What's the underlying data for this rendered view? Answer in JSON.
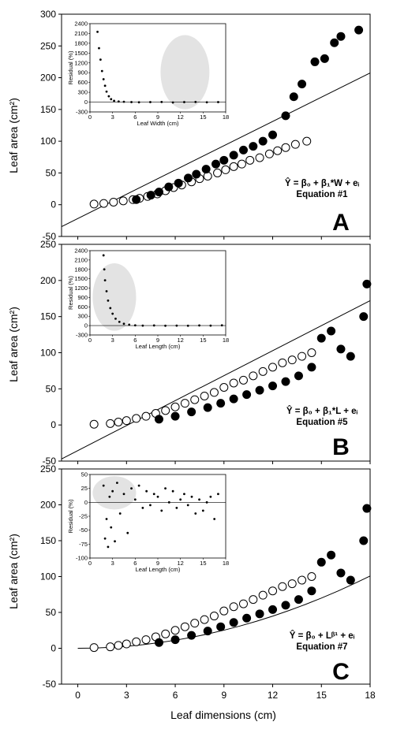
{
  "figure": {
    "y_axis_label": "Leaf area (cm²)",
    "x_axis_label": "Leaf dimensions (cm)",
    "x_ticks": [
      "0",
      "3",
      "6",
      "9",
      "12",
      "15",
      "18"
    ],
    "colors": {
      "line": "#000000",
      "open_marker_fill": "#ffffff",
      "filled_marker": "#000000",
      "highlight": "#e3e3e3"
    }
  },
  "chart_data": [
    {
      "panel": "A",
      "type": "scatter",
      "ylabel": "Leaf area (cm²)",
      "xlim": [
        -1,
        18
      ],
      "ylim": [
        -50,
        300
      ],
      "y_ticks": [
        "-50",
        "0",
        "50",
        "100",
        "150",
        "200",
        "250",
        "300"
      ],
      "equation": {
        "main": "Ŷ = β₀ + β₁*W + eᵢ",
        "label": "Equation #1"
      },
      "fit_line": {
        "x": [
          -1,
          18
        ],
        "y": [
          -34.5,
          207.5
        ]
      },
      "series": [
        {
          "marker": "open",
          "x": [
            1.0,
            1.6,
            2.2,
            2.8,
            3.4,
            3.8,
            4.3,
            4.9,
            5.4,
            5.9,
            6.4,
            7.0,
            7.5,
            8.0,
            8.6,
            9.1,
            9.6,
            10.1,
            10.6,
            11.2,
            11.8,
            12.3,
            12.8,
            13.4,
            14.1
          ],
          "y": [
            1,
            2,
            4,
            6,
            8,
            10,
            13,
            17,
            22,
            27,
            31,
            36,
            41,
            45,
            50,
            55,
            60,
            64,
            70,
            74,
            80,
            85,
            90,
            95,
            100
          ]
        },
        {
          "marker": "filled",
          "x": [
            3.6,
            4.5,
            5.0,
            5.6,
            6.2,
            6.8,
            7.3,
            7.9,
            8.5,
            9.0,
            9.6,
            10.2,
            10.8,
            11.4,
            12.0,
            12.8,
            13.3,
            13.8,
            14.6,
            15.2,
            15.8,
            16.2,
            17.3
          ],
          "y": [
            8,
            15,
            20,
            28,
            34,
            42,
            48,
            56,
            64,
            70,
            78,
            86,
            92,
            100,
            110,
            140,
            170,
            190,
            225,
            230,
            255,
            265,
            275
          ]
        }
      ],
      "inset": {
        "xlabel": "Leaf Width (cm)",
        "ylabel": "Residual (%)",
        "xlim": [
          0,
          18
        ],
        "ylim": [
          -300,
          2400
        ],
        "x_ticks": [
          "0",
          "3",
          "6",
          "9",
          "12",
          "15",
          "18"
        ],
        "y_ticks": [
          "-300",
          "0",
          "300",
          "600",
          "900",
          "1200",
          "1500",
          "1800",
          "2100",
          "2400"
        ],
        "x": [
          1.0,
          1.2,
          1.4,
          1.6,
          1.8,
          2.0,
          2.2,
          2.5,
          2.8,
          3.2,
          3.8,
          4.5,
          5.5,
          6.5,
          8.0,
          9.5,
          11.0,
          12.5,
          14.0,
          15.5,
          17.0
        ],
        "y": [
          2150,
          1650,
          1300,
          950,
          700,
          500,
          320,
          180,
          90,
          40,
          20,
          10,
          0,
          -5,
          0,
          5,
          -10,
          0,
          5,
          -5,
          0
        ]
      }
    },
    {
      "panel": "B",
      "type": "scatter",
      "ylabel": "Leaf area (cm²)",
      "xlim": [
        -1,
        18
      ],
      "ylim": [
        -50,
        250
      ],
      "y_ticks": [
        "-50",
        "0",
        "50",
        "100",
        "150",
        "200",
        "250"
      ],
      "equation": {
        "main": "Ŷ = β₀ + β₁*L + eᵢ",
        "label": "Equation #5"
      },
      "fit_line": {
        "x": [
          -1,
          18
        ],
        "y": [
          -47,
          172
        ]
      },
      "series": [
        {
          "marker": "open",
          "x": [
            1.0,
            2.0,
            2.5,
            3.0,
            3.6,
            4.2,
            4.8,
            5.4,
            6.0,
            6.6,
            7.2,
            7.8,
            8.4,
            9.0,
            9.6,
            10.2,
            10.8,
            11.4,
            12.0,
            12.6,
            13.2,
            13.8,
            14.4
          ],
          "y": [
            1,
            2,
            4,
            6,
            9,
            12,
            16,
            20,
            25,
            30,
            35,
            40,
            45,
            52,
            58,
            62,
            68,
            74,
            80,
            86,
            90,
            95,
            100
          ]
        },
        {
          "marker": "filled",
          "x": [
            5.0,
            6.0,
            7.0,
            8.0,
            8.8,
            9.6,
            10.4,
            11.2,
            12.0,
            12.8,
            13.6,
            14.4,
            15.0,
            15.6,
            16.2,
            16.8,
            17.6,
            17.8
          ],
          "y": [
            8,
            12,
            18,
            24,
            30,
            36,
            42,
            48,
            54,
            60,
            68,
            80,
            120,
            130,
            105,
            95,
            150,
            195
          ]
        }
      ],
      "inset": {
        "xlabel": "Leaf Length (cm)",
        "ylabel": "Residual (%)",
        "xlim": [
          0,
          18
        ],
        "ylim": [
          -300,
          2400
        ],
        "x_ticks": [
          "0",
          "3",
          "6",
          "9",
          "12",
          "15",
          "18"
        ],
        "y_ticks": [
          "-300",
          "0",
          "300",
          "600",
          "900",
          "1200",
          "1500",
          "1800",
          "2100",
          "2400"
        ],
        "x": [
          1.8,
          1.9,
          2.0,
          2.2,
          2.4,
          2.7,
          3.0,
          3.4,
          3.9,
          4.5,
          5.2,
          6.0,
          7.0,
          8.5,
          10.0,
          11.5,
          13.0,
          14.5,
          16.0,
          17.5
        ],
        "y": [
          2250,
          1800,
          1450,
          1100,
          800,
          560,
          380,
          220,
          120,
          60,
          30,
          10,
          0,
          5,
          -5,
          0,
          -5,
          5,
          0,
          10
        ]
      }
    },
    {
      "panel": "C",
      "type": "scatter",
      "ylabel": "Leaf area (cm²)",
      "xlim": [
        -1,
        18
      ],
      "ylim": [
        -50,
        250
      ],
      "y_ticks": [
        "-50",
        "0",
        "50",
        "100",
        "150",
        "200",
        "250"
      ],
      "equation": {
        "main": "Ŷ = β₀ + Lᵝ¹ + eᵢ",
        "label": "Equation #7"
      },
      "fit_line": {
        "x": [
          0,
          1,
          2,
          3,
          4,
          5,
          6,
          7,
          8,
          9,
          10,
          11,
          12,
          13,
          14,
          15,
          16,
          17,
          18
        ],
        "y": [
          0,
          0.3,
          1.2,
          2.8,
          5.0,
          7.8,
          11.2,
          15.2,
          19.9,
          25.2,
          31.1,
          37.6,
          44.8,
          52.6,
          61.0,
          70.0,
          79.6,
          89.9,
          100.8
        ]
      },
      "series": [
        {
          "marker": "open",
          "x": [
            1.0,
            2.0,
            2.5,
            3.0,
            3.6,
            4.2,
            4.8,
            5.4,
            6.0,
            6.6,
            7.2,
            7.8,
            8.4,
            9.0,
            9.6,
            10.2,
            10.8,
            11.4,
            12.0,
            12.6,
            13.2,
            13.8,
            14.4
          ],
          "y": [
            1,
            2,
            4,
            6,
            9,
            12,
            16,
            20,
            25,
            30,
            35,
            40,
            45,
            52,
            58,
            62,
            68,
            74,
            80,
            86,
            90,
            95,
            100
          ]
        },
        {
          "marker": "filled",
          "x": [
            5.0,
            6.0,
            7.0,
            8.0,
            8.8,
            9.6,
            10.4,
            11.2,
            12.0,
            12.8,
            13.6,
            14.4,
            15.0,
            15.6,
            16.2,
            16.8,
            17.6,
            17.8
          ],
          "y": [
            8,
            12,
            18,
            24,
            30,
            36,
            42,
            48,
            54,
            60,
            68,
            80,
            120,
            130,
            105,
            95,
            150,
            195
          ]
        }
      ],
      "inset": {
        "xlabel": "Leaf Length (cm)",
        "ylabel": "Residual (%)",
        "xlim": [
          0,
          18
        ],
        "ylim": [
          -100,
          50
        ],
        "x_ticks": [
          "0",
          "3",
          "6",
          "9",
          "12",
          "15",
          "18"
        ],
        "y_ticks": [
          "-100",
          "-75",
          "-50",
          "-25",
          "0",
          "25",
          "50"
        ],
        "x": [
          1.8,
          2.0,
          2.2,
          2.4,
          2.6,
          2.8,
          3.0,
          3.3,
          3.6,
          4.0,
          4.5,
          5.0,
          5.5,
          6.0,
          6.5,
          7.0,
          7.5,
          8.0,
          8.5,
          9.0,
          9.5,
          10.0,
          10.5,
          11.0,
          11.5,
          12.0,
          12.5,
          13.0,
          13.5,
          14.0,
          14.5,
          15.0,
          15.5,
          16.0,
          16.5,
          17.0
        ],
        "y": [
          30,
          -65,
          -30,
          -80,
          10,
          -45,
          20,
          -70,
          35,
          -20,
          15,
          -55,
          25,
          5,
          30,
          -10,
          20,
          -5,
          15,
          10,
          -15,
          25,
          0,
          20,
          -10,
          5,
          15,
          -5,
          10,
          -20,
          5,
          -15,
          0,
          10,
          -30,
          15
        ]
      }
    }
  ]
}
